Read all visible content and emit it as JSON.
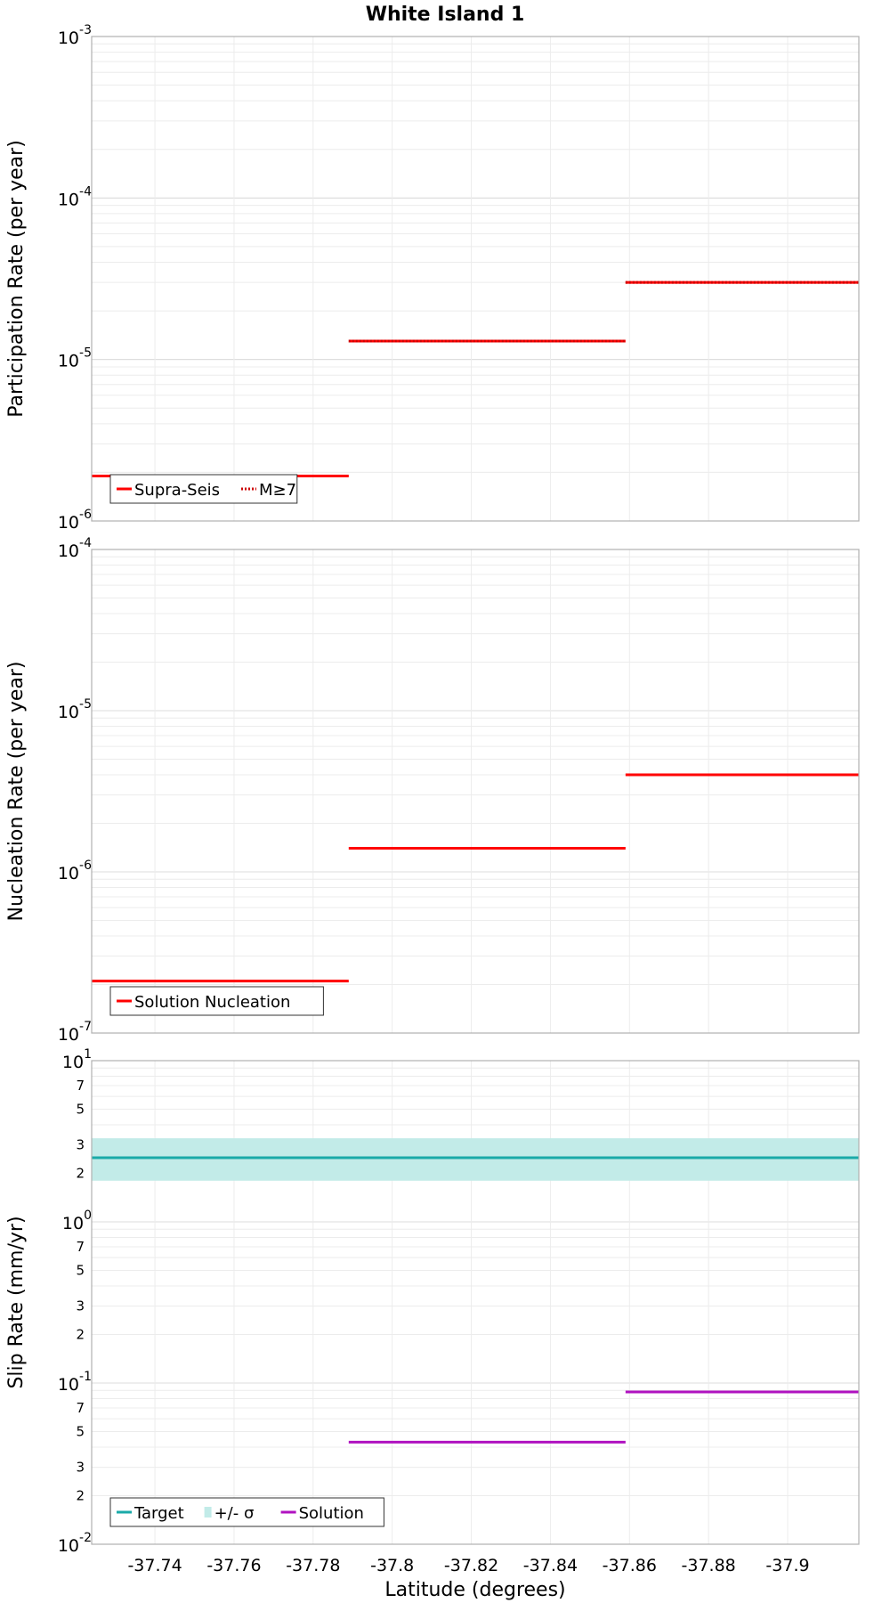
{
  "chart_data": [
    {
      "type": "line",
      "title": "White Island 1",
      "ylabel": "Participation Rate (per year)",
      "yscale": "log",
      "ylim": [
        1e-06,
        0.001
      ],
      "y_ticks": [
        {
          "base": "10",
          "exp": "-6"
        },
        {
          "base": "10",
          "exp": "-5"
        },
        {
          "base": "10",
          "exp": "-4"
        },
        {
          "base": "10",
          "exp": "-3"
        }
      ],
      "legend": {
        "position": "bottom-left",
        "entries": [
          "Supra-Seis",
          "M≥7"
        ]
      },
      "series": [
        {
          "name": "Supra-Seis",
          "style": "solid",
          "color": "#ff0000",
          "segments": [
            {
              "x_start": -37.724,
              "x_end": -37.789,
              "y": 1.9e-06
            },
            {
              "x_start": -37.789,
              "x_end": -37.859,
              "y": 1.3e-05
            },
            {
              "x_start": -37.859,
              "x_end": -37.918,
              "y": 3e-05
            }
          ]
        },
        {
          "name": "M≥7",
          "style": "dotted",
          "color": "#ff0000",
          "segments": [
            {
              "x_start": -37.789,
              "x_end": -37.859,
              "y": 1.3e-05
            },
            {
              "x_start": -37.859,
              "x_end": -37.918,
              "y": 3e-05
            }
          ]
        }
      ]
    },
    {
      "type": "line",
      "ylabel": "Nucleation Rate (per year)",
      "yscale": "log",
      "ylim": [
        1e-07,
        0.0001
      ],
      "y_ticks": [
        {
          "base": "10",
          "exp": "-7"
        },
        {
          "base": "10",
          "exp": "-6"
        },
        {
          "base": "10",
          "exp": "-5"
        },
        {
          "base": "10",
          "exp": "-4"
        }
      ],
      "legend": {
        "position": "bottom-left",
        "entries": [
          "Solution Nucleation"
        ]
      },
      "series": [
        {
          "name": "Solution Nucleation",
          "style": "solid",
          "color": "#ff0000",
          "segments": [
            {
              "x_start": -37.724,
              "x_end": -37.789,
              "y": 2.1e-07
            },
            {
              "x_start": -37.789,
              "x_end": -37.859,
              "y": 1.4e-06
            },
            {
              "x_start": -37.859,
              "x_end": -37.918,
              "y": 4e-06
            }
          ]
        }
      ]
    },
    {
      "type": "line",
      "ylabel": "Slip Rate (mm/yr)",
      "xlabel": "Latitude (degrees)",
      "yscale": "log",
      "ylim": [
        0.01,
        10
      ],
      "xlim": [
        -37.724,
        -37.918
      ],
      "x_ticks": [
        -37.74,
        -37.76,
        -37.78,
        -37.8,
        -37.82,
        -37.84,
        -37.86,
        -37.88,
        -37.9
      ],
      "x_tick_labels": [
        "-37.74",
        "-37.76",
        "-37.78",
        "-37.8",
        "-37.82",
        "-37.84",
        "-37.86",
        "-37.88",
        "-37.9"
      ],
      "y_ticks": [
        {
          "base": "10",
          "exp": "-2"
        },
        {
          "base": "10",
          "exp": "-1"
        },
        {
          "base": "10",
          "exp": "0"
        },
        {
          "base": "10",
          "exp": "1"
        }
      ],
      "y_minor_labels": [
        "2",
        "3",
        "5",
        "7"
      ],
      "legend": {
        "position": "bottom-left",
        "entries": [
          "Target",
          "+/- σ",
          "Solution"
        ]
      },
      "band": {
        "name": "+/- σ",
        "color": "#c2ebe8",
        "y_low": 1.8,
        "y_high": 3.3
      },
      "series": [
        {
          "name": "Target",
          "style": "solid",
          "color": "#1aaaa8",
          "segments": [
            {
              "x_start": -37.724,
              "x_end": -37.918,
              "y": 2.5
            }
          ]
        },
        {
          "name": "Solution",
          "style": "solid",
          "color": "#b012c0",
          "segments": [
            {
              "x_start": -37.789,
              "x_end": -37.859,
              "y": 0.043
            },
            {
              "x_start": -37.859,
              "x_end": -37.918,
              "y": 0.088
            }
          ]
        }
      ]
    }
  ]
}
